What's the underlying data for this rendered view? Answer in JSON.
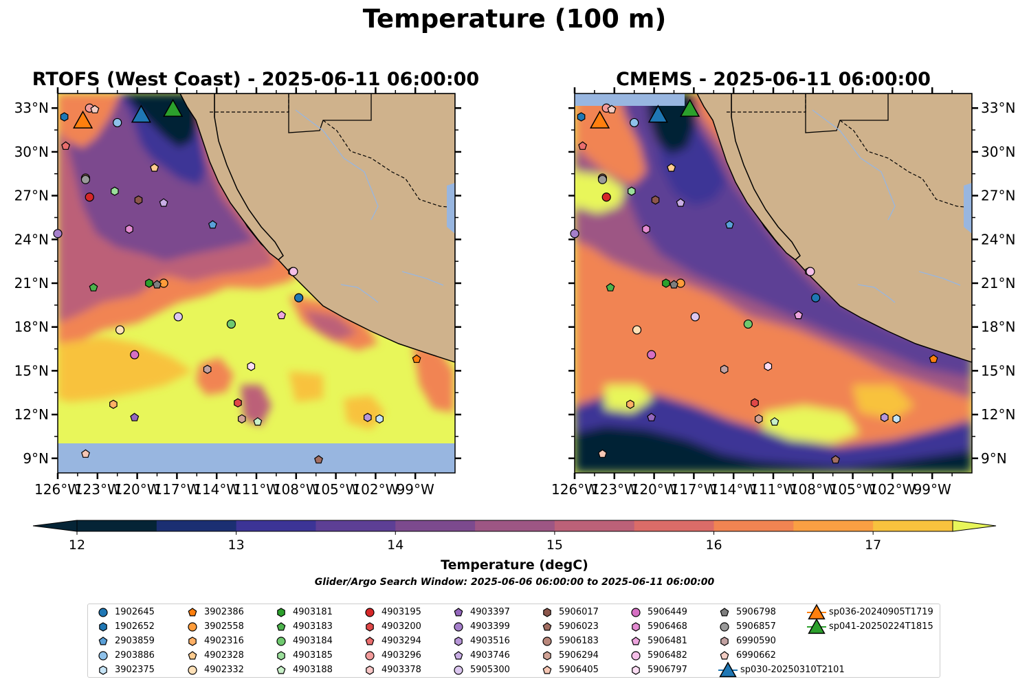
{
  "figure": {
    "title": "Temperature (100 m)",
    "panels": [
      {
        "title": "RTOFS (West Coast) - 2025-06-11 06:00:00",
        "lat_axis_side": "left"
      },
      {
        "title": "CMEMS - 2025-06-11 06:00:00",
        "lat_axis_side": "right"
      }
    ],
    "extent": {
      "lon": [
        -126,
        -96
      ],
      "lat": [
        8,
        34
      ]
    },
    "lon_ticks": [
      "126°W",
      "123°W",
      "120°W",
      "117°W",
      "114°W",
      "111°W",
      "108°W",
      "105°W",
      "102°W",
      "99°W"
    ],
    "lat_ticks": [
      "33°N",
      "30°N",
      "27°N",
      "24°N",
      "21°N",
      "18°N",
      "15°N",
      "12°N",
      "9°N"
    ]
  },
  "colorbar": {
    "label": "Temperature (degC)",
    "ticks": [
      "12",
      "13",
      "14",
      "15",
      "16",
      "17"
    ],
    "range": [
      12,
      17.5
    ],
    "step": 0.5,
    "extend": "both",
    "colors": [
      "#052436",
      "#1b2f72",
      "#3c3496",
      "#5d3f95",
      "#7c4a8e",
      "#9d5684",
      "#bc6178",
      "#db6c68",
      "#f18452",
      "#fa9f43",
      "#f8c23e",
      "#e8f65a"
    ],
    "under_color": "#052436",
    "over_color": "#e8f65a"
  },
  "search_window": "Glider/Argo Search Window: 2025-06-06 06:00:00 to 2025-06-11 06:00:00",
  "colors": {
    "land": "#cfb28c",
    "water": "#98b6e0",
    "land_edge": "#000000",
    "river": "#98b6e0"
  },
  "legend": {
    "items": [
      {
        "label": "1902645",
        "marker": "circle",
        "color": "#1f77b4"
      },
      {
        "label": "1902652",
        "marker": "hexagon",
        "color": "#1f77b4"
      },
      {
        "label": "2903859",
        "marker": "pentagon",
        "color": "#5aa0d8"
      },
      {
        "label": "2903886",
        "marker": "circle",
        "color": "#8ec1ea"
      },
      {
        "label": "3902375",
        "marker": "hexagon",
        "color": "#c6e4f6"
      },
      {
        "label": "3902386",
        "marker": "pentagon",
        "color": "#ff7f0e"
      },
      {
        "label": "3902558",
        "marker": "circle",
        "color": "#ff9c3a"
      },
      {
        "label": "4902316",
        "marker": "hexagon",
        "color": "#ffb066"
      },
      {
        "label": "4902328",
        "marker": "pentagon",
        "color": "#ffcc8f"
      },
      {
        "label": "4902332",
        "marker": "circle",
        "color": "#ffe1b8"
      },
      {
        "label": "4903181",
        "marker": "hexagon",
        "color": "#2ca02c"
      },
      {
        "label": "4903183",
        "marker": "pentagon",
        "color": "#4db34d"
      },
      {
        "label": "4903184",
        "marker": "circle",
        "color": "#6fc96f"
      },
      {
        "label": "4903185",
        "marker": "hexagon",
        "color": "#9bde9b"
      },
      {
        "label": "4903188",
        "marker": "pentagon",
        "color": "#c8f0c8"
      },
      {
        "label": "4903195",
        "marker": "circle",
        "color": "#d62728"
      },
      {
        "label": "4903200",
        "marker": "hexagon",
        "color": "#e04848"
      },
      {
        "label": "4903294",
        "marker": "pentagon",
        "color": "#ea6e6e"
      },
      {
        "label": "4903296",
        "marker": "circle",
        "color": "#f29b9b"
      },
      {
        "label": "4903378",
        "marker": "hexagon",
        "color": "#f9c7c7"
      },
      {
        "label": "4903397",
        "marker": "pentagon",
        "color": "#9467bd"
      },
      {
        "label": "4903399",
        "marker": "circle",
        "color": "#a57fcb"
      },
      {
        "label": "4903516",
        "marker": "hexagon",
        "color": "#b796d8"
      },
      {
        "label": "4903746",
        "marker": "pentagon",
        "color": "#c9aee5"
      },
      {
        "label": "5905300",
        "marker": "circle",
        "color": "#dcc7f0"
      },
      {
        "label": "5906017",
        "marker": "hexagon",
        "color": "#8c564b"
      },
      {
        "label": "5906023",
        "marker": "pentagon",
        "color": "#a26e62"
      },
      {
        "label": "5906183",
        "marker": "circle",
        "color": "#b9877b"
      },
      {
        "label": "5906294",
        "marker": "hexagon",
        "color": "#d1a396"
      },
      {
        "label": "5906405",
        "marker": "pentagon",
        "color": "#f5c6b4"
      },
      {
        "label": "5906449",
        "marker": "circle",
        "color": "#d66fc3"
      },
      {
        "label": "5906468",
        "marker": "hexagon",
        "color": "#e38bd1"
      },
      {
        "label": "5906481",
        "marker": "pentagon",
        "color": "#eda5de"
      },
      {
        "label": "5906482",
        "marker": "circle",
        "color": "#f5bfe8"
      },
      {
        "label": "5906797",
        "marker": "hexagon",
        "color": "#fbdcf3"
      },
      {
        "label": "5906798",
        "marker": "pentagon",
        "color": "#7f7f7f"
      },
      {
        "label": "5906857",
        "marker": "circle",
        "color": "#999999"
      },
      {
        "label": "6990590",
        "marker": "hexagon",
        "color": "#c2a2a2"
      },
      {
        "label": "6990662",
        "marker": "pentagon",
        "color": "#f3cdc4"
      },
      {
        "label": "sp030-20250310T2101",
        "marker": "triangle",
        "color": "#1f77b4"
      },
      {
        "label": "sp036-20240905T1719",
        "marker": "triangle",
        "color": "#ff7f0e"
      },
      {
        "label": "sp041-20250224T1815",
        "marker": "triangle",
        "color": "#2ca02c"
      }
    ]
  },
  "floats": [
    {
      "id": "1902645",
      "lon": -107.8,
      "lat": 20.0
    },
    {
      "id": "1902652",
      "lon": -125.5,
      "lat": 32.4
    },
    {
      "id": "2903859",
      "lon": -114.3,
      "lat": 25.0
    },
    {
      "id": "2903886",
      "lon": -121.5,
      "lat": 32.0
    },
    {
      "id": "3902375",
      "lon": -101.7,
      "lat": 11.7
    },
    {
      "id": "3902386",
      "lon": -98.9,
      "lat": 15.8
    },
    {
      "id": "3902558",
      "lon": -118.0,
      "lat": 21.0
    },
    {
      "id": "4902316",
      "lon": -121.8,
      "lat": 12.7
    },
    {
      "id": "4902328",
      "lon": -118.7,
      "lat": 28.9
    },
    {
      "id": "4902332",
      "lon": -121.3,
      "lat": 17.8
    },
    {
      "id": "4903181",
      "lon": -119.1,
      "lat": 21.0
    },
    {
      "id": "4903183",
      "lon": -123.3,
      "lat": 20.7
    },
    {
      "id": "4903184",
      "lon": -112.9,
      "lat": 18.2
    },
    {
      "id": "4903185",
      "lon": -121.7,
      "lat": 27.3
    },
    {
      "id": "4903188",
      "lon": -110.9,
      "lat": 11.5
    },
    {
      "id": "4903195",
      "lon": -123.6,
      "lat": 26.9
    },
    {
      "id": "4903200",
      "lon": -112.4,
      "lat": 12.8
    },
    {
      "id": "4903294",
      "lon": -125.4,
      "lat": 30.4
    },
    {
      "id": "4903296",
      "lon": -123.6,
      "lat": 33.0
    },
    {
      "id": "4903378",
      "lon": -108.3,
      "lat": 21.8
    },
    {
      "id": "4903397",
      "lon": -120.2,
      "lat": 11.8
    },
    {
      "id": "4903399",
      "lon": -126.0,
      "lat": 24.4
    },
    {
      "id": "4903516",
      "lon": -102.6,
      "lat": 11.8
    },
    {
      "id": "4903746",
      "lon": -118.0,
      "lat": 26.5
    },
    {
      "id": "5905300",
      "lon": -116.9,
      "lat": 18.7
    },
    {
      "id": "5906017",
      "lon": -119.9,
      "lat": 26.7
    },
    {
      "id": "5906023",
      "lon": -106.3,
      "lat": 8.9
    },
    {
      "id": "5906183",
      "lon": -123.9,
      "lat": 28.2
    },
    {
      "id": "5906294",
      "lon": -112.1,
      "lat": 11.7
    },
    {
      "id": "5906405",
      "lon": -123.9,
      "lat": 9.3
    },
    {
      "id": "5906449",
      "lon": -120.2,
      "lat": 16.1
    },
    {
      "id": "5906468",
      "lon": -120.6,
      "lat": 24.7
    },
    {
      "id": "5906481",
      "lon": -109.1,
      "lat": 18.8
    },
    {
      "id": "5906482",
      "lon": -108.2,
      "lat": 21.8
    },
    {
      "id": "5906797",
      "lon": -111.4,
      "lat": 15.3
    },
    {
      "id": "5906798",
      "lon": -118.5,
      "lat": 20.9
    },
    {
      "id": "5906857",
      "lon": -123.9,
      "lat": 28.1
    },
    {
      "id": "6990590",
      "lon": -114.7,
      "lat": 15.1
    },
    {
      "id": "6990662",
      "lon": -123.2,
      "lat": 32.9
    },
    {
      "id": "sp030-20250310T2101",
      "lon": -119.7,
      "lat": 32.5
    },
    {
      "id": "sp036-20240905T1719",
      "lon": -124.1,
      "lat": 32.1
    },
    {
      "id": "sp041-20250224T1815",
      "lon": -117.3,
      "lat": 32.9
    }
  ],
  "gliders": [
    "sp030-20250310T2101",
    "sp036-20240905T1719",
    "sp041-20250224T1815"
  ]
}
